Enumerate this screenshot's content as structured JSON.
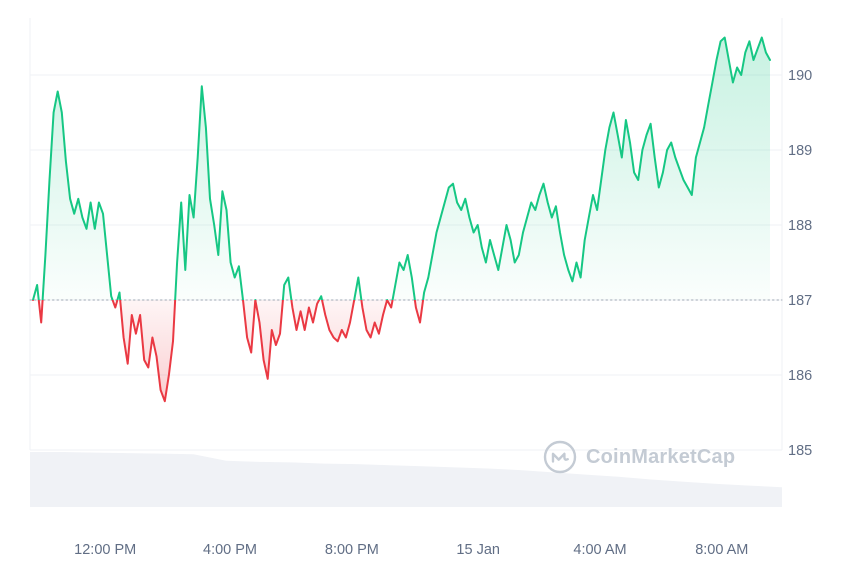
{
  "watermark": {
    "text": "CoinMarketCap"
  },
  "chart_data": {
    "type": "line",
    "title": "",
    "xlabel": "",
    "ylabel": "",
    "grid": true,
    "legend": false,
    "y_axis_side": "right",
    "baseline_price": 187,
    "ylim": [
      184.7,
      190.8
    ],
    "y_ticks": [
      190,
      189,
      188,
      187,
      186,
      185
    ],
    "x_ticks": [
      {
        "label": "12:00 PM",
        "pos": 0.1
      },
      {
        "label": "4:00 PM",
        "pos": 0.266
      },
      {
        "label": "8:00 PM",
        "pos": 0.428
      },
      {
        "label": "15 Jan",
        "pos": 0.596
      },
      {
        "label": "4:00 AM",
        "pos": 0.758
      },
      {
        "label": "8:00 AM",
        "pos": 0.92
      }
    ],
    "series": [
      {
        "name": "price",
        "values": [
          187.0,
          187.2,
          186.7,
          187.6,
          188.6,
          189.5,
          189.78,
          189.5,
          188.85,
          188.35,
          188.15,
          188.35,
          188.1,
          187.95,
          188.3,
          187.95,
          188.3,
          188.15,
          187.6,
          187.05,
          186.9,
          187.1,
          186.5,
          186.15,
          186.8,
          186.55,
          186.8,
          186.2,
          186.1,
          186.5,
          186.25,
          185.8,
          185.65,
          186.0,
          186.45,
          187.5,
          188.3,
          187.4,
          188.4,
          188.1,
          188.9,
          189.85,
          189.3,
          188.35,
          188.0,
          187.6,
          188.45,
          188.2,
          187.5,
          187.3,
          187.45,
          187.0,
          186.5,
          186.3,
          187.0,
          186.7,
          186.2,
          185.95,
          186.6,
          186.4,
          186.55,
          187.2,
          187.3,
          186.9,
          186.6,
          186.85,
          186.6,
          186.9,
          186.7,
          186.95,
          187.05,
          186.8,
          186.6,
          186.5,
          186.45,
          186.6,
          186.5,
          186.7,
          187.0,
          187.3,
          186.9,
          186.6,
          186.5,
          186.7,
          186.55,
          186.8,
          187.0,
          186.9,
          187.2,
          187.5,
          187.4,
          187.6,
          187.3,
          186.9,
          186.7,
          187.1,
          187.3,
          187.6,
          187.9,
          188.1,
          188.3,
          188.5,
          188.55,
          188.3,
          188.2,
          188.35,
          188.1,
          187.9,
          188.0,
          187.7,
          187.5,
          187.8,
          187.6,
          187.4,
          187.7,
          188.0,
          187.8,
          187.5,
          187.6,
          187.9,
          188.1,
          188.3,
          188.2,
          188.4,
          188.55,
          188.3,
          188.1,
          188.25,
          187.9,
          187.6,
          187.4,
          187.25,
          187.5,
          187.3,
          187.8,
          188.1,
          188.4,
          188.2,
          188.6,
          189.0,
          189.3,
          189.5,
          189.2,
          188.9,
          189.4,
          189.1,
          188.7,
          188.6,
          189.0,
          189.2,
          189.35,
          188.9,
          188.5,
          188.7,
          189.0,
          189.1,
          188.9,
          188.75,
          188.6,
          188.5,
          188.4,
          188.9,
          189.1,
          189.3,
          189.6,
          189.9,
          190.2,
          190.45,
          190.5,
          190.2,
          189.9,
          190.1,
          190.0,
          190.3,
          190.45,
          190.2,
          190.35,
          190.5,
          190.3,
          190.2
        ]
      }
    ],
    "navigator": {
      "name": "volume-area",
      "values": [
        1.0,
        1.0,
        0.99,
        0.98,
        0.97,
        0.96,
        0.84,
        0.82,
        0.81,
        0.79,
        0.78,
        0.76,
        0.74,
        0.72,
        0.7,
        0.67,
        0.63,
        0.59,
        0.55,
        0.5,
        0.46,
        0.42,
        0.39,
        0.36
      ]
    },
    "colors": {
      "up": "#16c784",
      "down": "#ea3943",
      "baseline": "#9ea7b3",
      "grid": "#eff2f5",
      "tick_text": "#616e85",
      "watermark": "#c4cbd4",
      "nav_fill": "#f0f2f6"
    }
  }
}
